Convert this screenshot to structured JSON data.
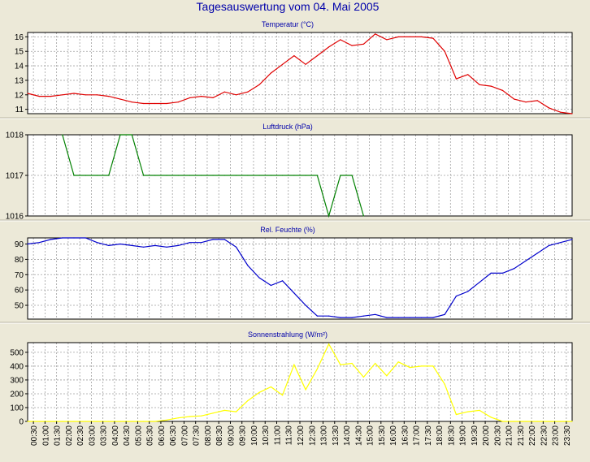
{
  "page_title": "Tagesauswertung vom 04. Mai 2005",
  "colors": {
    "background": "#ece9d8",
    "plot_background": "#ffffff",
    "title": "#0000aa",
    "grid": "#a0a0a0",
    "axis": "#000000"
  },
  "time_ticks": [
    "00:30",
    "01:00",
    "01:30",
    "02:00",
    "02:30",
    "03:00",
    "03:30",
    "04:00",
    "04:30",
    "05:00",
    "05:30",
    "06:00",
    "06:30",
    "07:00",
    "07:30",
    "08:00",
    "08:30",
    "09:00",
    "09:30",
    "10:00",
    "10:30",
    "11:00",
    "11:30",
    "12:00",
    "12:30",
    "13:00",
    "13:30",
    "14:00",
    "14:30",
    "15:00",
    "15:30",
    "16:00",
    "16:30",
    "17:00",
    "17:30",
    "18:00",
    "18:30",
    "19:00",
    "19:30",
    "20:00",
    "20:30",
    "21:00",
    "21:30",
    "22:00",
    "22:30",
    "23:00",
    "23:30"
  ],
  "chart_data": [
    {
      "type": "line",
      "title": "Temperatur (°C)",
      "color": "#e00000",
      "xlim": [
        0,
        23.5
      ],
      "ylim": [
        10.7,
        16.3
      ],
      "yticks": [
        11,
        12,
        13,
        14,
        15,
        16
      ],
      "ytick_labels": [
        "11",
        "12",
        "13",
        "14",
        "15",
        "16"
      ],
      "grid": true,
      "x": [
        0,
        0.5,
        1,
        1.5,
        2,
        2.5,
        3,
        3.5,
        4,
        4.5,
        5,
        5.5,
        6,
        6.5,
        7,
        7.5,
        8,
        8.5,
        9,
        9.5,
        10,
        10.5,
        11,
        11.5,
        12,
        12.5,
        13,
        13.5,
        14,
        14.5,
        15,
        15.5,
        16,
        16.5,
        17,
        17.5,
        18,
        18.5,
        19,
        19.5,
        20,
        20.5,
        21,
        21.5,
        22,
        22.5,
        23,
        23.5
      ],
      "y": [
        12.1,
        11.9,
        11.9,
        12.0,
        12.1,
        12.0,
        12.0,
        11.9,
        11.7,
        11.5,
        11.4,
        11.4,
        11.4,
        11.5,
        11.8,
        11.9,
        11.8,
        12.2,
        12.0,
        12.2,
        12.7,
        13.5,
        14.1,
        14.7,
        14.1,
        14.7,
        15.3,
        15.8,
        15.4,
        15.5,
        16.2,
        15.8,
        16.0,
        16.0,
        16.0,
        15.9,
        15.0,
        13.1,
        13.4,
        12.7,
        12.6,
        12.3,
        11.7,
        11.5,
        11.6,
        11.1,
        10.8,
        10.7
      ]
    },
    {
      "type": "line",
      "title": "Luftdruck (hPa)",
      "color": "#008000",
      "xlim": [
        0,
        23.5
      ],
      "ylim": [
        1016,
        1018
      ],
      "yticks": [
        1016,
        1017,
        1018
      ],
      "ytick_labels": [
        "1016",
        "1017",
        "1018"
      ],
      "grid": true,
      "x": [
        1.5,
        2,
        2.5,
        3,
        3.5,
        4,
        4.5,
        5,
        5.5,
        6,
        6.5,
        7,
        7.5,
        8,
        8.5,
        9,
        9.5,
        10,
        10.5,
        11,
        11.5,
        12,
        12.5,
        13,
        13.5,
        14,
        14.5
      ],
      "y": [
        1018,
        1017,
        1017,
        1017,
        1017,
        1018,
        1018,
        1017,
        1017,
        1017,
        1017,
        1017,
        1017,
        1017,
        1017,
        1017,
        1017,
        1017,
        1017,
        1017,
        1017,
        1017,
        1017,
        1016,
        1017,
        1017,
        1016
      ]
    },
    {
      "type": "line",
      "title": "Rel. Feuchte (%)",
      "color": "#0000cc",
      "xlim": [
        0,
        23.5
      ],
      "ylim": [
        41,
        94
      ],
      "yticks": [
        50,
        60,
        70,
        80,
        90
      ],
      "ytick_labels": [
        "50",
        "60",
        "70",
        "80",
        "90"
      ],
      "grid": true,
      "x": [
        0,
        0.5,
        1,
        1.5,
        2,
        2.5,
        3,
        3.5,
        4,
        4.5,
        5,
        5.5,
        6,
        6.5,
        7,
        7.5,
        8,
        8.5,
        9,
        9.5,
        10,
        10.5,
        11,
        11.5,
        12,
        12.5,
        13,
        13.5,
        14,
        14.5,
        15,
        15.5,
        16,
        16.5,
        17,
        17.5,
        18,
        18.5,
        19,
        19.5,
        20,
        20.5,
        21,
        21.5,
        22,
        22.5,
        23,
        23.5
      ],
      "y": [
        90,
        91,
        93,
        94,
        95,
        94,
        91,
        89,
        90,
        89,
        88,
        89,
        88,
        89,
        91,
        91,
        93,
        93,
        88,
        76,
        68,
        63,
        66,
        58,
        50,
        43,
        43,
        42,
        42,
        43,
        44,
        42,
        42,
        42,
        42,
        42,
        44,
        56,
        59,
        65,
        71,
        71,
        74,
        79,
        84,
        89,
        91,
        93
      ]
    },
    {
      "type": "line",
      "title": "Sonnenstrahlung (W/m²)",
      "color": "#ffff00",
      "xlim": [
        0,
        23.5
      ],
      "ylim": [
        0,
        570
      ],
      "yticks": [
        0,
        100,
        200,
        300,
        400,
        500
      ],
      "ytick_labels": [
        "0",
        "100",
        "200",
        "300",
        "400",
        "500"
      ],
      "grid": true,
      "x": [
        0,
        0.5,
        1,
        1.5,
        2,
        2.5,
        3,
        3.5,
        4,
        4.5,
        5,
        5.5,
        6,
        6.5,
        7,
        7.5,
        8,
        8.5,
        9,
        9.5,
        10,
        10.5,
        11,
        11.5,
        12,
        12.5,
        13,
        13.5,
        14,
        14.5,
        15,
        15.5,
        16,
        16.5,
        17,
        17.5,
        18,
        18.5,
        19,
        19.5,
        20,
        20.5,
        21,
        21.5,
        22,
        22.5,
        23,
        23.5
      ],
      "y": [
        0,
        0,
        0,
        0,
        0,
        0,
        0,
        0,
        0,
        0,
        0,
        0,
        10,
        25,
        35,
        40,
        60,
        80,
        70,
        150,
        210,
        250,
        190,
        410,
        230,
        380,
        560,
        410,
        420,
        320,
        420,
        330,
        430,
        390,
        400,
        400,
        270,
        50,
        70,
        80,
        30,
        0,
        0,
        0,
        0,
        0,
        0,
        0
      ]
    }
  ]
}
